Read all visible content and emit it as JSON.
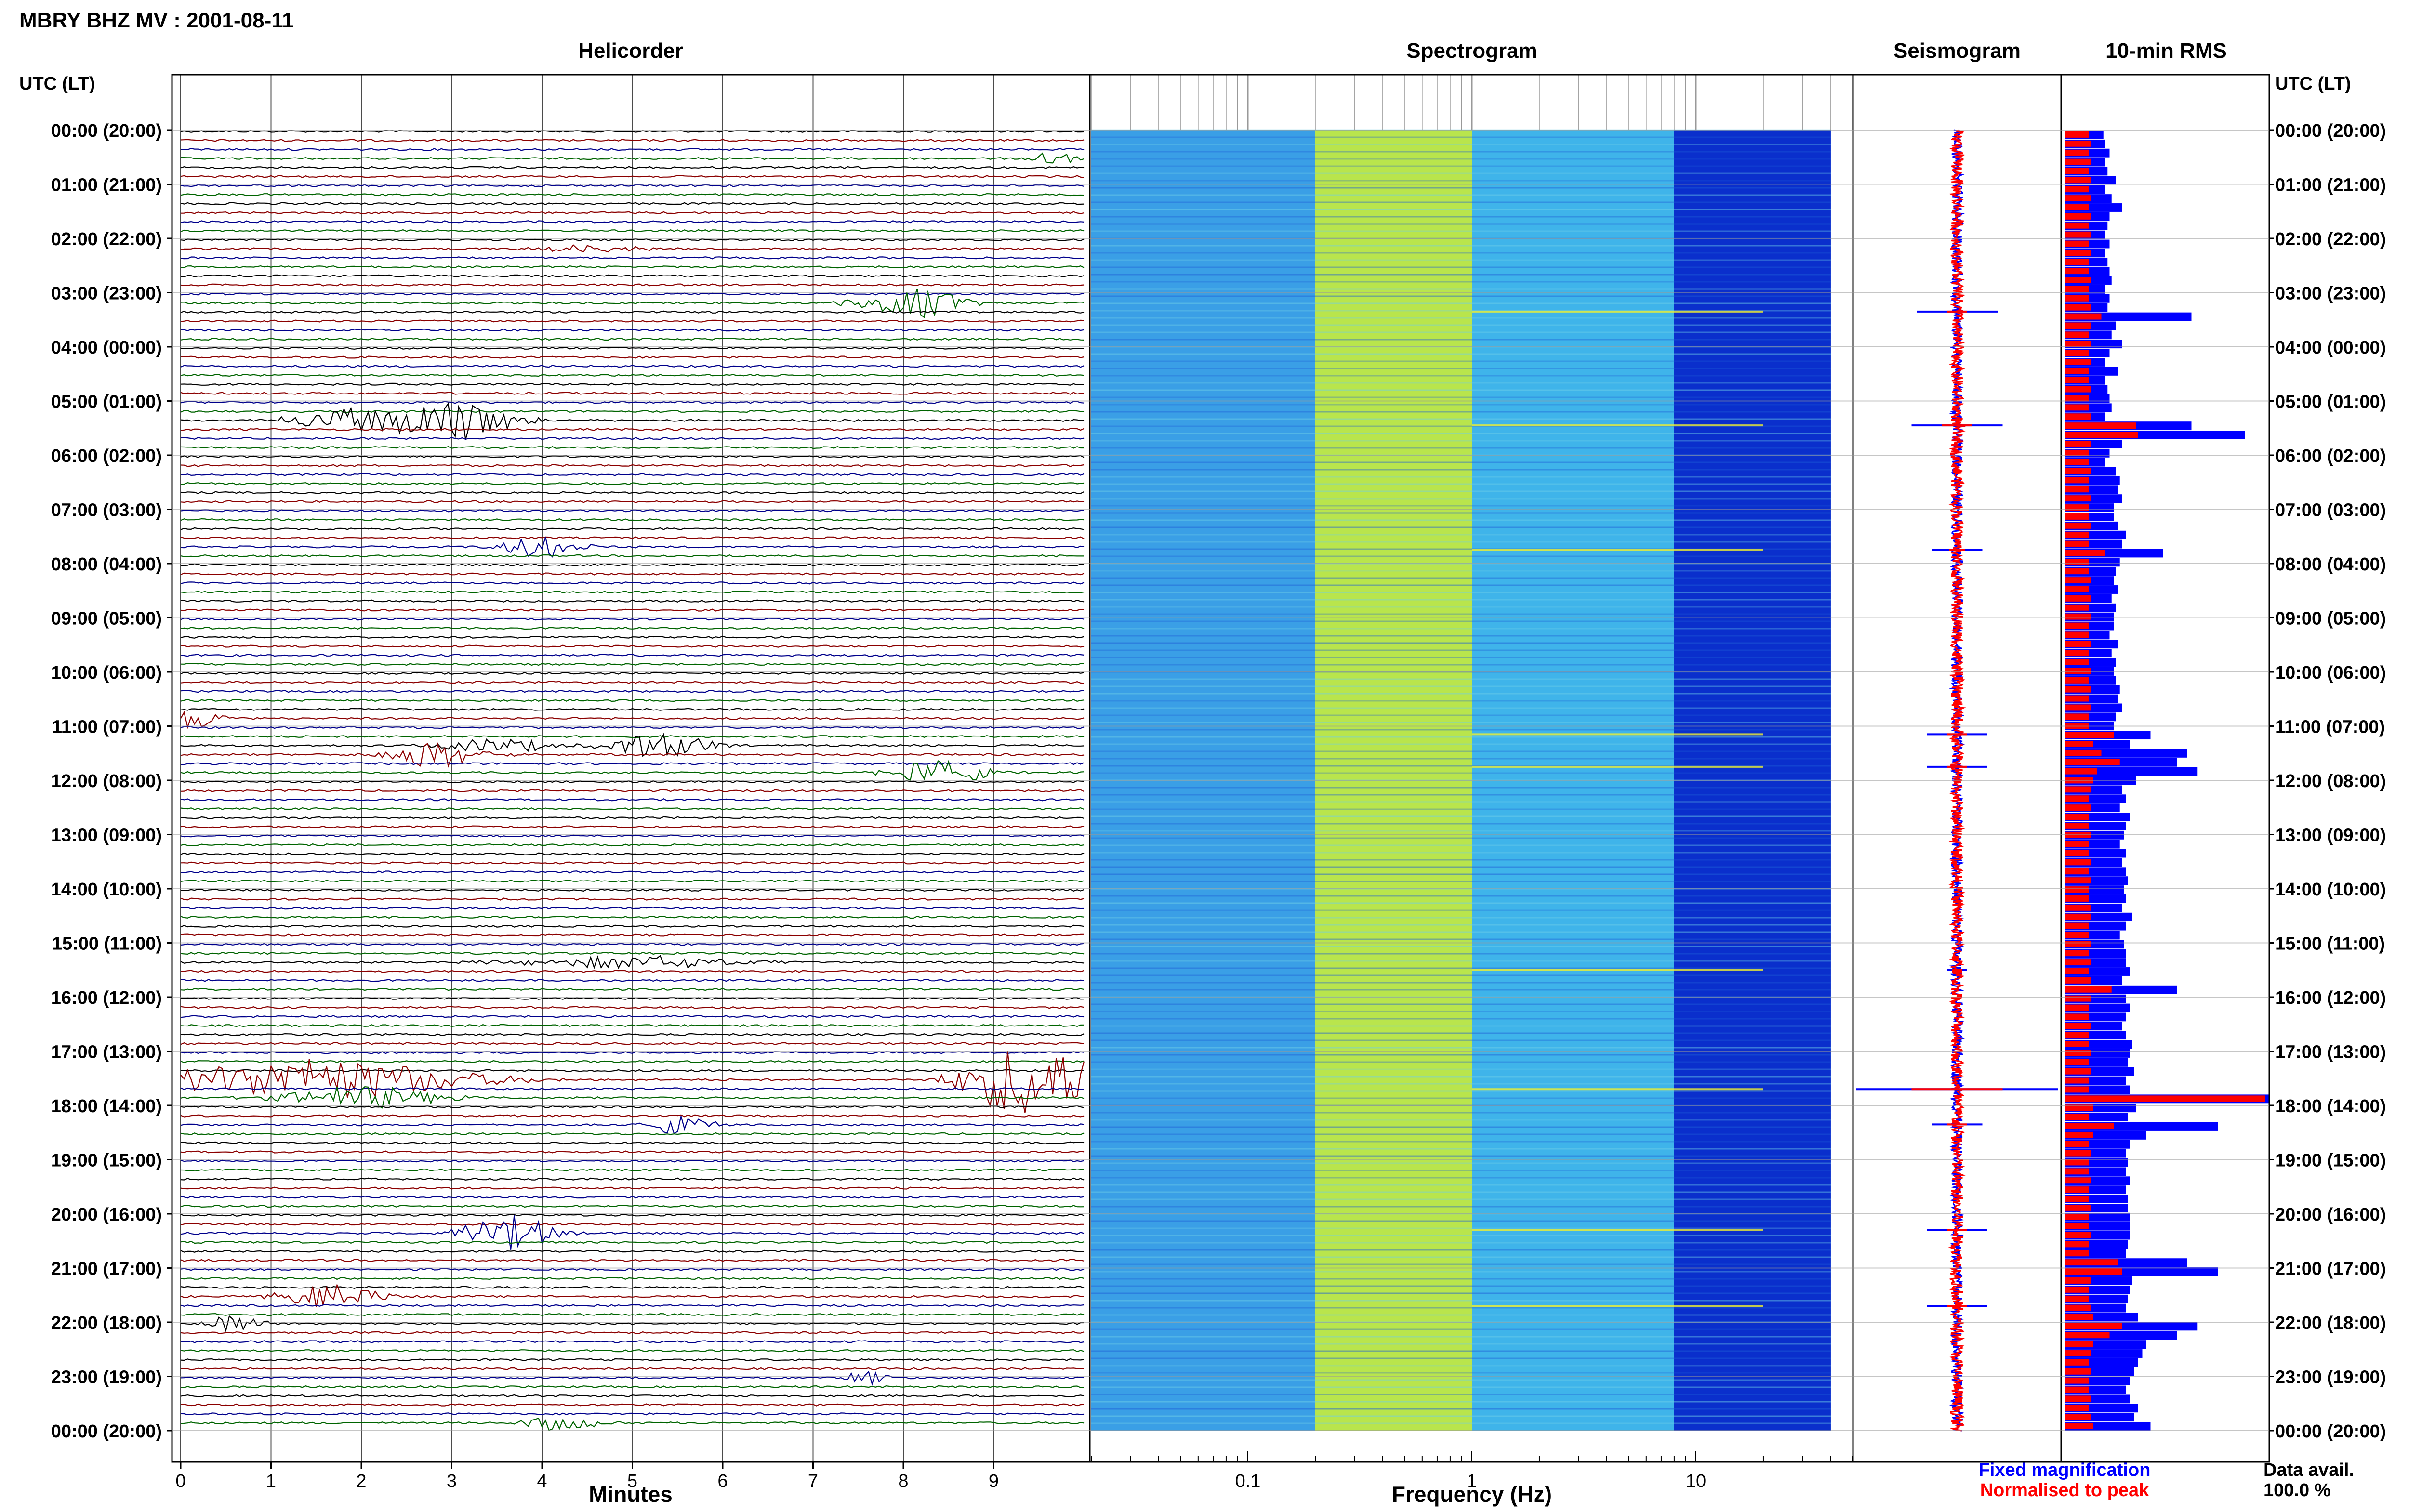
{
  "header": {
    "title": "MBRY BHZ MV : 2001-08-11"
  },
  "panels": {
    "helicorder": "Helicorder",
    "spectrogram": "Spectrogram",
    "seismogram": "Seismogram",
    "rms": "10-min RMS"
  },
  "time_axis": {
    "label": "UTC (LT)",
    "ticks": [
      "00:00 (20:00)",
      "01:00 (21:00)",
      "02:00 (22:00)",
      "03:00 (23:00)",
      "04:00 (00:00)",
      "05:00 (01:00)",
      "06:00 (02:00)",
      "07:00 (03:00)",
      "08:00 (04:00)",
      "09:00 (05:00)",
      "10:00 (06:00)",
      "11:00 (07:00)",
      "12:00 (08:00)",
      "13:00 (09:00)",
      "14:00 (10:00)",
      "15:00 (11:00)",
      "16:00 (12:00)",
      "17:00 (13:00)",
      "18:00 (14:00)",
      "19:00 (15:00)",
      "20:00 (16:00)",
      "21:00 (17:00)",
      "22:00 (18:00)",
      "23:00 (19:00)",
      "00:00 (20:00)"
    ]
  },
  "footer": {
    "fixed_label": "Fixed magnification",
    "norm_label": "Normalised to peak",
    "avail_label": "Data avail.",
    "avail_value": "100.0 %"
  },
  "colors": {
    "trace_black": "#000000",
    "trace_red": "#8b0000",
    "trace_blue": "#00008b",
    "trace_green": "#006400",
    "rms_fixed": "#0000ff",
    "rms_norm": "#ff0000",
    "grid": "#999999"
  },
  "chart_data": [
    {
      "type": "line",
      "name": "helicorder",
      "title": "Helicorder",
      "xlabel": "Minutes",
      "xlim": [
        0,
        10
      ],
      "xticks": [
        0,
        1,
        2,
        3,
        4,
        5,
        6,
        7,
        8,
        9
      ],
      "rows_per_hour": 6,
      "trace_colors": [
        "black",
        "red",
        "blue",
        "green"
      ],
      "events": [
        {
          "hour": 0.55,
          "minute": 9.65,
          "amp": 0.5,
          "dur": 0.4
        },
        {
          "hour": 2.15,
          "minute": 4.55,
          "amp": 0.3,
          "dur": 0.8
        },
        {
          "hour": 3.1,
          "minute": 8.1,
          "amp": 1.2,
          "dur": 0.8
        },
        {
          "hour": 5.35,
          "minute": 1.8,
          "amp": 1.0,
          "dur": 0.8
        },
        {
          "hour": 5.3,
          "minute": 3.0,
          "amp": 1.7,
          "dur": 0.9
        },
        {
          "hour": 7.7,
          "minute": 4.0,
          "amp": 0.9,
          "dur": 0.6
        },
        {
          "hour": 10.75,
          "minute": 0.1,
          "amp": 0.8,
          "dur": 0.5
        },
        {
          "hour": 11.3,
          "minute": 3.5,
          "amp": 0.6,
          "dur": 0.8
        },
        {
          "hour": 11.45,
          "minute": 2.8,
          "amp": 1.0,
          "dur": 0.8
        },
        {
          "hour": 11.3,
          "minute": 5.3,
          "amp": 1.0,
          "dur": 0.8
        },
        {
          "hour": 11.8,
          "minute": 8.4,
          "amp": 1.0,
          "dur": 0.8
        },
        {
          "hour": 15.3,
          "minute": 5.0,
          "amp": 0.5,
          "dur": 1.8
        },
        {
          "hour": 17.5,
          "minute": 1.5,
          "amp": 1.6,
          "dur": 2.4
        },
        {
          "hour": 17.45,
          "minute": 9.4,
          "amp": 3.0,
          "dur": 1.0
        },
        {
          "hour": 17.85,
          "minute": 2.0,
          "amp": 0.9,
          "dur": 1.2
        },
        {
          "hour": 18.25,
          "minute": 5.5,
          "amp": 0.8,
          "dur": 0.5
        },
        {
          "hour": 20.25,
          "minute": 3.6,
          "amp": 1.4,
          "dur": 0.8
        },
        {
          "hour": 21.55,
          "minute": 1.7,
          "amp": 1.0,
          "dur": 0.8
        },
        {
          "hour": 21.95,
          "minute": 0.6,
          "amp": 0.8,
          "dur": 0.4
        },
        {
          "hour": 23.0,
          "minute": 7.6,
          "amp": 0.6,
          "dur": 0.3
        },
        {
          "hour": 23.85,
          "minute": 4.2,
          "amp": 0.6,
          "dur": 0.6
        }
      ]
    },
    {
      "type": "heatmap",
      "name": "spectrogram",
      "title": "Spectrogram",
      "xlabel": "Frequency (Hz)",
      "xscale": "log",
      "xlim": [
        0.02,
        50
      ],
      "xtick_labels": [
        "0.1",
        "1",
        "10"
      ],
      "xtick_values": [
        0.1,
        1,
        10
      ],
      "band_colors": [
        {
          "f0": 0.02,
          "f1": 0.2,
          "color": "#3a9fe6"
        },
        {
          "f0": 0.2,
          "f1": 1.0,
          "color": "#b9e54c"
        },
        {
          "f0": 1.0,
          "f1": 8.0,
          "color": "#3fb4ea"
        },
        {
          "f0": 8.0,
          "f1": 40.0,
          "color": "#0a2fcc"
        }
      ],
      "streaks_hours": [
        3.35,
        5.45,
        7.75,
        11.15,
        11.75,
        15.5,
        17.7,
        20.3,
        21.7
      ]
    },
    {
      "type": "line",
      "name": "seismogram",
      "title": "Seismogram",
      "spikes": [
        {
          "hour": 3.35,
          "fixed": 0.4,
          "norm": 0.1
        },
        {
          "hour": 5.45,
          "fixed": 0.45,
          "norm": 0.15
        },
        {
          "hour": 7.75,
          "fixed": 0.25,
          "norm": 0.08
        },
        {
          "hour": 11.15,
          "fixed": 0.3,
          "norm": 0.1
        },
        {
          "hour": 11.75,
          "fixed": 0.3,
          "norm": 0.1
        },
        {
          "hour": 15.5,
          "fixed": 0.1,
          "norm": 0.05
        },
        {
          "hour": 17.7,
          "fixed": 1.0,
          "norm": 0.45
        },
        {
          "hour": 18.35,
          "fixed": 0.25,
          "norm": 0.1
        },
        {
          "hour": 20.3,
          "fixed": 0.3,
          "norm": 0.1
        },
        {
          "hour": 21.7,
          "fixed": 0.3,
          "norm": 0.1
        }
      ]
    },
    {
      "type": "bar",
      "name": "rms",
      "title": "10-min RMS",
      "orientation": "horizontal",
      "series": [
        {
          "name": "Fixed magnification",
          "color": "#0000ff"
        },
        {
          "name": "Normalised to peak",
          "color": "#ff0000"
        }
      ],
      "fixed": [
        0.19,
        0.2,
        0.22,
        0.2,
        0.21,
        0.25,
        0.2,
        0.23,
        0.28,
        0.22,
        0.21,
        0.2,
        0.22,
        0.2,
        0.21,
        0.22,
        0.23,
        0.2,
        0.22,
        0.21,
        0.62,
        0.25,
        0.23,
        0.28,
        0.22,
        0.2,
        0.26,
        0.2,
        0.21,
        0.22,
        0.23,
        0.2,
        0.62,
        0.88,
        0.28,
        0.22,
        0.2,
        0.25,
        0.27,
        0.26,
        0.28,
        0.24,
        0.24,
        0.26,
        0.3,
        0.28,
        0.48,
        0.27,
        0.25,
        0.24,
        0.26,
        0.23,
        0.25,
        0.24,
        0.24,
        0.22,
        0.26,
        0.23,
        0.25,
        0.24,
        0.25,
        0.27,
        0.26,
        0.28,
        0.25,
        0.24,
        0.42,
        0.32,
        0.6,
        0.55,
        0.65,
        0.35,
        0.28,
        0.3,
        0.27,
        0.32,
        0.3,
        0.29,
        0.27,
        0.3,
        0.28,
        0.3,
        0.31,
        0.29,
        0.3,
        0.28,
        0.33,
        0.3,
        0.27,
        0.29,
        0.3,
        0.3,
        0.32,
        0.28,
        0.55,
        0.3,
        0.32,
        0.3,
        0.28,
        0.3,
        0.33,
        0.32,
        0.31,
        0.34,
        0.3,
        0.32,
        1.0,
        0.35,
        0.31,
        0.75,
        0.4,
        0.32,
        0.3,
        0.31,
        0.3,
        0.32,
        0.3,
        0.31,
        0.31,
        0.32,
        0.32,
        0.32,
        0.31,
        0.3,
        0.6,
        0.75,
        0.33,
        0.32,
        0.31,
        0.3,
        0.36,
        0.65,
        0.55,
        0.4,
        0.38,
        0.36,
        0.34,
        0.32,
        0.3,
        0.32,
        0.36,
        0.34,
        0.42
      ],
      "norm": [
        0.12,
        0.13,
        0.12,
        0.13,
        0.12,
        0.13,
        0.12,
        0.13,
        0.12,
        0.13,
        0.12,
        0.13,
        0.12,
        0.13,
        0.12,
        0.12,
        0.13,
        0.12,
        0.12,
        0.13,
        0.18,
        0.13,
        0.12,
        0.13,
        0.12,
        0.13,
        0.12,
        0.12,
        0.13,
        0.12,
        0.12,
        0.13,
        0.35,
        0.36,
        0.13,
        0.12,
        0.12,
        0.13,
        0.12,
        0.12,
        0.13,
        0.12,
        0.12,
        0.13,
        0.12,
        0.12,
        0.2,
        0.12,
        0.12,
        0.13,
        0.12,
        0.13,
        0.12,
        0.13,
        0.12,
        0.12,
        0.13,
        0.12,
        0.12,
        0.13,
        0.12,
        0.13,
        0.12,
        0.13,
        0.12,
        0.12,
        0.24,
        0.14,
        0.18,
        0.27,
        0.16,
        0.14,
        0.13,
        0.12,
        0.13,
        0.12,
        0.12,
        0.13,
        0.12,
        0.12,
        0.13,
        0.12,
        0.13,
        0.12,
        0.12,
        0.13,
        0.13,
        0.12,
        0.12,
        0.13,
        0.12,
        0.13,
        0.12,
        0.13,
        0.23,
        0.13,
        0.12,
        0.12,
        0.13,
        0.12,
        0.12,
        0.13,
        0.12,
        0.13,
        0.12,
        0.12,
        0.98,
        0.14,
        0.12,
        0.24,
        0.14,
        0.12,
        0.13,
        0.12,
        0.12,
        0.13,
        0.12,
        0.12,
        0.13,
        0.12,
        0.12,
        0.13,
        0.12,
        0.12,
        0.26,
        0.28,
        0.13,
        0.12,
        0.12,
        0.13,
        0.14,
        0.28,
        0.22,
        0.14,
        0.13,
        0.12,
        0.13,
        0.12,
        0.12,
        0.13,
        0.12,
        0.13,
        0.14
      ]
    }
  ]
}
